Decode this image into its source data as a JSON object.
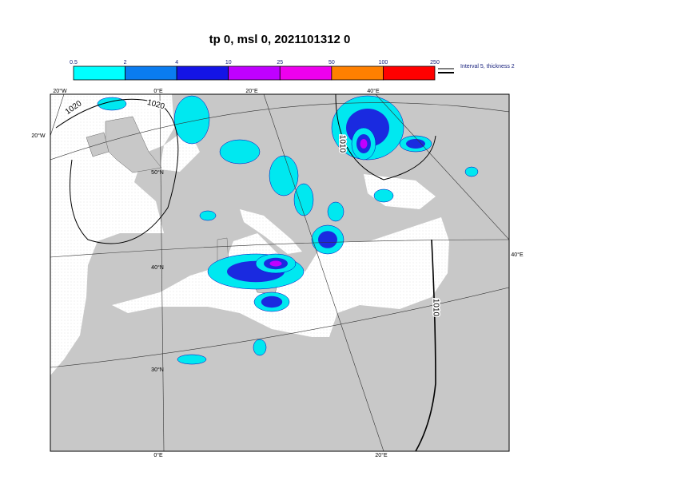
{
  "title": "tp 0, msl 0, 2021101312 0",
  "colorbar": {
    "labels": [
      "0.5",
      "2",
      "4",
      "10",
      "25",
      "50",
      "100",
      "250"
    ],
    "colors": [
      "#00ffff",
      "#0a7cf0",
      "#1414e6",
      "#c000ff",
      "#ee00ee",
      "#ff8000",
      "#ff0000",
      "#ff0000"
    ]
  },
  "legend": {
    "text": "Interval 5, thickness 2"
  },
  "map": {
    "lon_labels_top": [
      "20°W",
      "0°E",
      "20°E",
      "40°E"
    ],
    "lon_labels_bottom": [
      "0°E",
      "20°E"
    ],
    "lat_labels": [
      "20°W",
      "50°N",
      "40°N",
      "30°N",
      "40°E"
    ],
    "isobar_labels": [
      "1020",
      "1020",
      "1010",
      "1010"
    ]
  }
}
